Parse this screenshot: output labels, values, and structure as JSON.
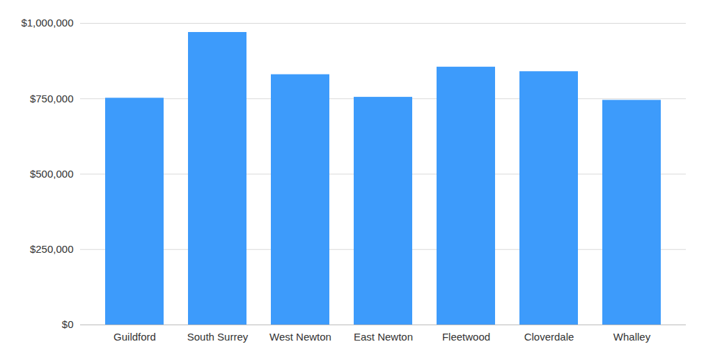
{
  "chart_data": {
    "type": "bar",
    "categories": [
      "Guildford",
      "South Surrey",
      "West Newton",
      "East Newton",
      "Fleetwood",
      "Cloverdale",
      "Whalley"
    ],
    "values": [
      752000,
      970000,
      830000,
      755000,
      855000,
      840000,
      745000
    ],
    "color": "#3d9bfb",
    "ylim": [
      0,
      1000000
    ],
    "yticks": [
      {
        "value": 0,
        "label": "$0"
      },
      {
        "value": 250000,
        "label": "$250,000"
      },
      {
        "value": 500000,
        "label": "$500,000"
      },
      {
        "value": 750000,
        "label": "$750,000"
      },
      {
        "value": 1000000,
        "label": "$1,000,000"
      }
    ],
    "grid": true
  }
}
